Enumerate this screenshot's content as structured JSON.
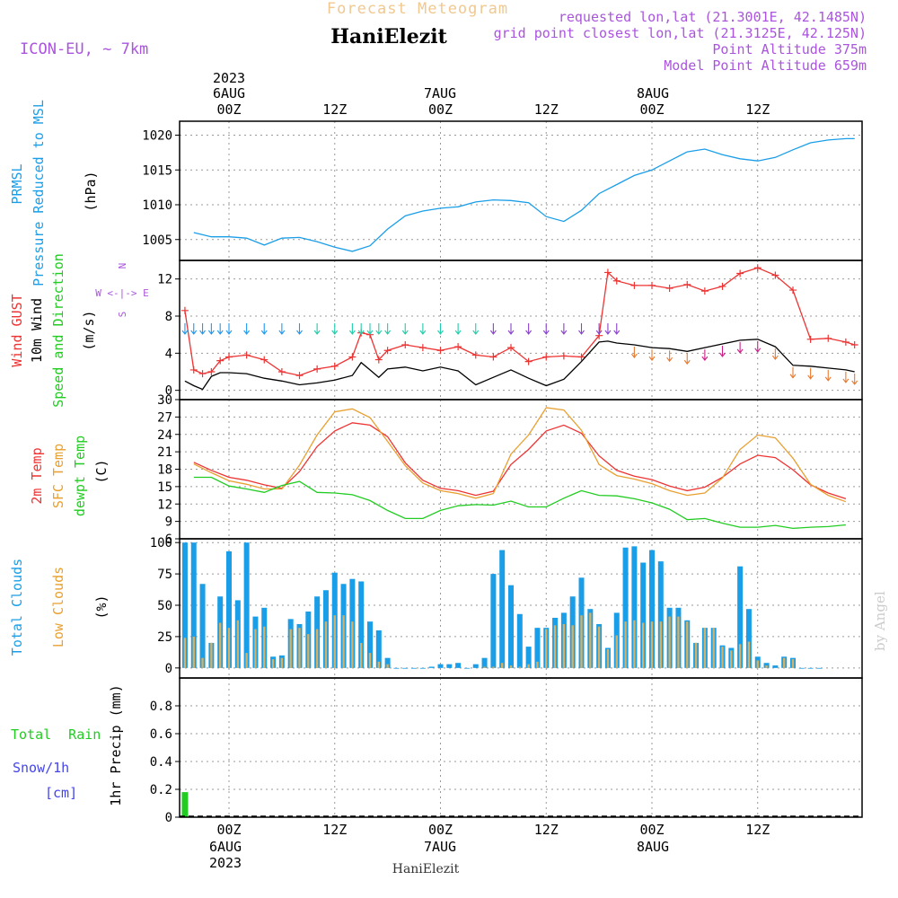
{
  "header": {
    "supertitle": "Forecast Meteogram",
    "location": "HaniElezit",
    "model": "ICON-EU, ~ 7km",
    "requested": "requested lon,lat (21.3001E, 42.1485N)",
    "gridpoint": "grid point closest lon,lat (21.3125E, 42.125N)",
    "point_alt": "Point Altitude 375m",
    "model_alt": "Model Point Altitude 659m",
    "footer": "HaniElezit",
    "credit": "by Angel"
  },
  "time_axis": {
    "year": "2023",
    "ticks": [
      "00Z",
      "12Z",
      "00Z",
      "12Z",
      "00Z",
      "12Z"
    ],
    "day_labels": [
      "6AUG",
      "7AUG",
      "8AUG"
    ]
  },
  "colors": {
    "pressure": "#1a9ee8",
    "gust": "#ee3333",
    "wind": "#000000",
    "temp": "#ee3333",
    "sfc": "#e8a030",
    "dew": "#22cc22",
    "total_clouds": "#1a9ee8",
    "low_clouds": "#d8b060",
    "rain": "#22cc22",
    "snow": "#4444ee",
    "model_label": "#aa55dd"
  },
  "chart_data": [
    {
      "type": "line",
      "panel": "pressure",
      "ylabel_lines": [
        "PRMSL",
        "Pressure Reduced to MSL"
      ],
      "unit": "(hPa)",
      "ylim": [
        1002,
        1022
      ],
      "yticks": [
        1005,
        1010,
        1015,
        1020
      ],
      "x_hours": [
        -4,
        -2,
        0,
        2,
        4,
        6,
        8,
        10,
        12,
        14,
        16,
        18,
        20,
        22,
        24,
        26,
        28,
        30,
        32,
        34,
        36,
        38,
        40,
        42,
        44,
        46,
        48,
        50,
        52,
        54,
        56,
        58,
        60,
        62,
        64,
        66,
        68,
        70,
        71
      ],
      "series": [
        {
          "name": "PRMSL",
          "values": [
            1006.0,
            1005.4,
            1005.4,
            1005.2,
            1004.2,
            1005.2,
            1005.3,
            1004.7,
            1003.9,
            1003.3,
            1004.1,
            1006.5,
            1008.4,
            1009.1,
            1009.5,
            1009.7,
            1010.4,
            1010.7,
            1010.6,
            1010.3,
            1008.3,
            1007.6,
            1009.2,
            1011.6,
            1012.9,
            1014.2,
            1015.0,
            1016.3,
            1017.6,
            1018.0,
            1017.2,
            1016.6,
            1016.3,
            1016.8,
            1017.9,
            1018.9,
            1019.3,
            1019.5,
            1019.5
          ]
        }
      ]
    },
    {
      "type": "line",
      "panel": "wind",
      "ylabel_lines": [
        "Wind GUST",
        "10m Wind",
        "Speed and Direction"
      ],
      "unit": "(m/s)",
      "compass": [
        "N",
        "W <-|-> E",
        "S"
      ],
      "ylim": [
        -1,
        14
      ],
      "yticks": [
        0,
        4,
        8,
        12
      ],
      "x_hours": [
        -5,
        -4,
        -3,
        -2,
        -1,
        0,
        2,
        4,
        6,
        8,
        10,
        12,
        14,
        15,
        16,
        17,
        18,
        20,
        22,
        24,
        26,
        28,
        30,
        32,
        34,
        36,
        38,
        40,
        42,
        43,
        44,
        46,
        48,
        50,
        52,
        54,
        56,
        58,
        60,
        62,
        64,
        66,
        68,
        70,
        71
      ],
      "series": [
        {
          "name": "Wind GUST",
          "values": [
            8.6,
            2.2,
            1.8,
            2.0,
            3.2,
            3.6,
            3.8,
            3.3,
            2.0,
            1.6,
            2.3,
            2.6,
            3.6,
            6.2,
            6.0,
            3.3,
            4.3,
            4.9,
            4.6,
            4.3,
            4.7,
            3.8,
            3.6,
            4.6,
            3.1,
            3.6,
            3.7,
            3.6,
            5.9,
            12.7,
            11.8,
            11.3,
            11.3,
            11.0,
            11.4,
            10.7,
            11.2,
            12.6,
            13.2,
            12.4,
            10.8,
            5.5,
            5.6,
            5.2,
            4.9
          ]
        },
        {
          "name": "10m Wind",
          "values": [
            1.0,
            0.5,
            0.1,
            1.5,
            1.9,
            1.9,
            1.8,
            1.3,
            1.0,
            0.6,
            0.8,
            1.1,
            1.6,
            3.0,
            2.2,
            1.4,
            2.3,
            2.5,
            2.1,
            2.5,
            2.1,
            0.6,
            1.4,
            2.2,
            1.3,
            0.5,
            1.2,
            3.1,
            5.2,
            5.3,
            5.1,
            4.9,
            4.6,
            4.5,
            4.2,
            4.6,
            5.0,
            5.4,
            5.5,
            4.7,
            2.7,
            2.6,
            2.4,
            2.2,
            2.0
          ]
        }
      ]
    },
    {
      "type": "line",
      "panel": "temperature",
      "ylabel_lines": [
        "2m Temp",
        "SFC Temp",
        "dewpt Temp"
      ],
      "unit": "(C)",
      "ylim": [
        6,
        30
      ],
      "yticks": [
        6,
        9,
        12,
        15,
        18,
        21,
        24,
        27,
        30
      ],
      "x_hours": [
        -4,
        -2,
        0,
        2,
        4,
        6,
        8,
        10,
        12,
        14,
        16,
        18,
        20,
        22,
        24,
        26,
        28,
        30,
        32,
        34,
        36,
        38,
        40,
        42,
        44,
        46,
        48,
        50,
        52,
        54,
        56,
        58,
        60,
        62,
        64,
        66,
        68,
        70
      ],
      "series": [
        {
          "name": "2m Temp",
          "values": [
            19.2,
            17.8,
            16.6,
            16.1,
            15.3,
            14.7,
            17.6,
            21.9,
            24.6,
            26.0,
            25.6,
            23.6,
            19.1,
            16.1,
            14.7,
            14.3,
            13.5,
            14.2,
            18.8,
            21.4,
            24.6,
            25.6,
            24.2,
            20.3,
            17.8,
            16.8,
            16.2,
            15.1,
            14.3,
            14.9,
            16.6,
            18.9,
            20.4,
            20.0,
            17.9,
            15.3,
            13.9,
            12.9
          ]
        },
        {
          "name": "SFC Temp",
          "values": [
            18.9,
            17.4,
            16.0,
            15.4,
            14.6,
            14.6,
            18.7,
            23.9,
            27.9,
            28.4,
            26.9,
            22.8,
            18.6,
            15.6,
            14.3,
            13.8,
            13.0,
            13.8,
            20.6,
            23.9,
            28.6,
            28.2,
            24.7,
            18.8,
            16.9,
            16.3,
            15.5,
            14.3,
            13.5,
            13.9,
            16.5,
            21.4,
            23.9,
            23.4,
            19.9,
            15.4,
            13.5,
            12.4
          ]
        },
        {
          "name": "dewpt Temp",
          "values": [
            16.6,
            16.6,
            15.1,
            14.6,
            14.0,
            15.2,
            15.9,
            14.0,
            13.9,
            13.6,
            12.6,
            10.9,
            9.5,
            9.5,
            10.9,
            11.7,
            11.9,
            11.8,
            12.5,
            11.5,
            11.5,
            13.0,
            14.3,
            13.5,
            13.4,
            12.9,
            12.2,
            11.1,
            9.3,
            9.5,
            8.7,
            8.0,
            8.0,
            8.3,
            7.8,
            8.0,
            8.1,
            8.4
          ]
        }
      ]
    },
    {
      "type": "bar",
      "panel": "clouds",
      "ylabel_lines": [
        "Total Clouds",
        "Low Clouds"
      ],
      "unit": "(%)",
      "ylim": [
        -8,
        103
      ],
      "yticks": [
        0,
        25,
        50,
        75,
        100
      ],
      "x_hours": [
        -5,
        -4,
        -3,
        -2,
        -1,
        0,
        1,
        2,
        3,
        4,
        5,
        6,
        7,
        8,
        9,
        10,
        11,
        12,
        13,
        14,
        15,
        16,
        17,
        18,
        19,
        20,
        21,
        22,
        23,
        24,
        25,
        26,
        27,
        28,
        29,
        30,
        31,
        32,
        33,
        34,
        35,
        36,
        37,
        38,
        39,
        40,
        41,
        42,
        43,
        44,
        45,
        46,
        47,
        48,
        49,
        50,
        51,
        52,
        53,
        54,
        55,
        56,
        57,
        58,
        59,
        60,
        61,
        62,
        63,
        64,
        65,
        66,
        67,
        68,
        69,
        70,
        71
      ],
      "series": [
        {
          "name": "Total Clouds",
          "values": [
            100,
            100,
            67,
            20,
            57,
            93,
            54,
            100,
            41,
            48,
            9,
            10,
            39,
            35,
            45,
            57,
            62,
            76,
            67,
            71,
            69,
            37,
            30,
            8,
            0,
            0,
            0,
            0,
            1,
            3,
            3,
            4,
            0,
            3,
            8,
            75,
            94,
            66,
            43,
            17,
            32,
            32,
            40,
            44,
            57,
            72,
            47,
            35,
            16,
            44,
            96,
            97,
            84,
            94,
            85,
            48,
            48,
            38,
            20,
            32,
            32,
            18,
            16,
            81,
            47,
            9,
            4,
            2,
            9,
            8,
            0,
            0,
            0
          ]
        },
        {
          "name": "Low Clouds",
          "values": [
            24,
            25,
            8,
            20,
            36,
            32,
            38,
            12,
            31,
            33,
            7,
            8,
            31,
            32,
            27,
            31,
            37,
            42,
            42,
            37,
            20,
            12,
            5,
            3,
            0,
            0,
            0,
            0,
            0,
            0,
            0,
            0,
            0,
            0,
            1,
            1,
            4,
            2,
            1,
            3,
            5,
            31,
            34,
            35,
            34,
            42,
            44,
            33,
            15,
            26,
            37,
            38,
            36,
            37,
            37,
            41,
            41,
            37,
            20,
            32,
            32,
            17,
            14,
            19,
            21,
            6,
            2,
            0,
            8,
            7,
            0,
            0,
            0
          ]
        }
      ]
    },
    {
      "type": "bar",
      "panel": "precip",
      "ylabel_lines": [
        "Total Rain",
        "Snow/1h",
        "[cm]"
      ],
      "unit": "1hr Precip (mm)",
      "ylim": [
        0,
        1.0
      ],
      "yticks": [
        "0",
        "0.2",
        "0.4",
        "0.6",
        "0.8"
      ],
      "x_hours": [
        -5
      ],
      "series": [
        {
          "name": "Total Rain",
          "values": [
            0.18
          ]
        }
      ]
    }
  ]
}
